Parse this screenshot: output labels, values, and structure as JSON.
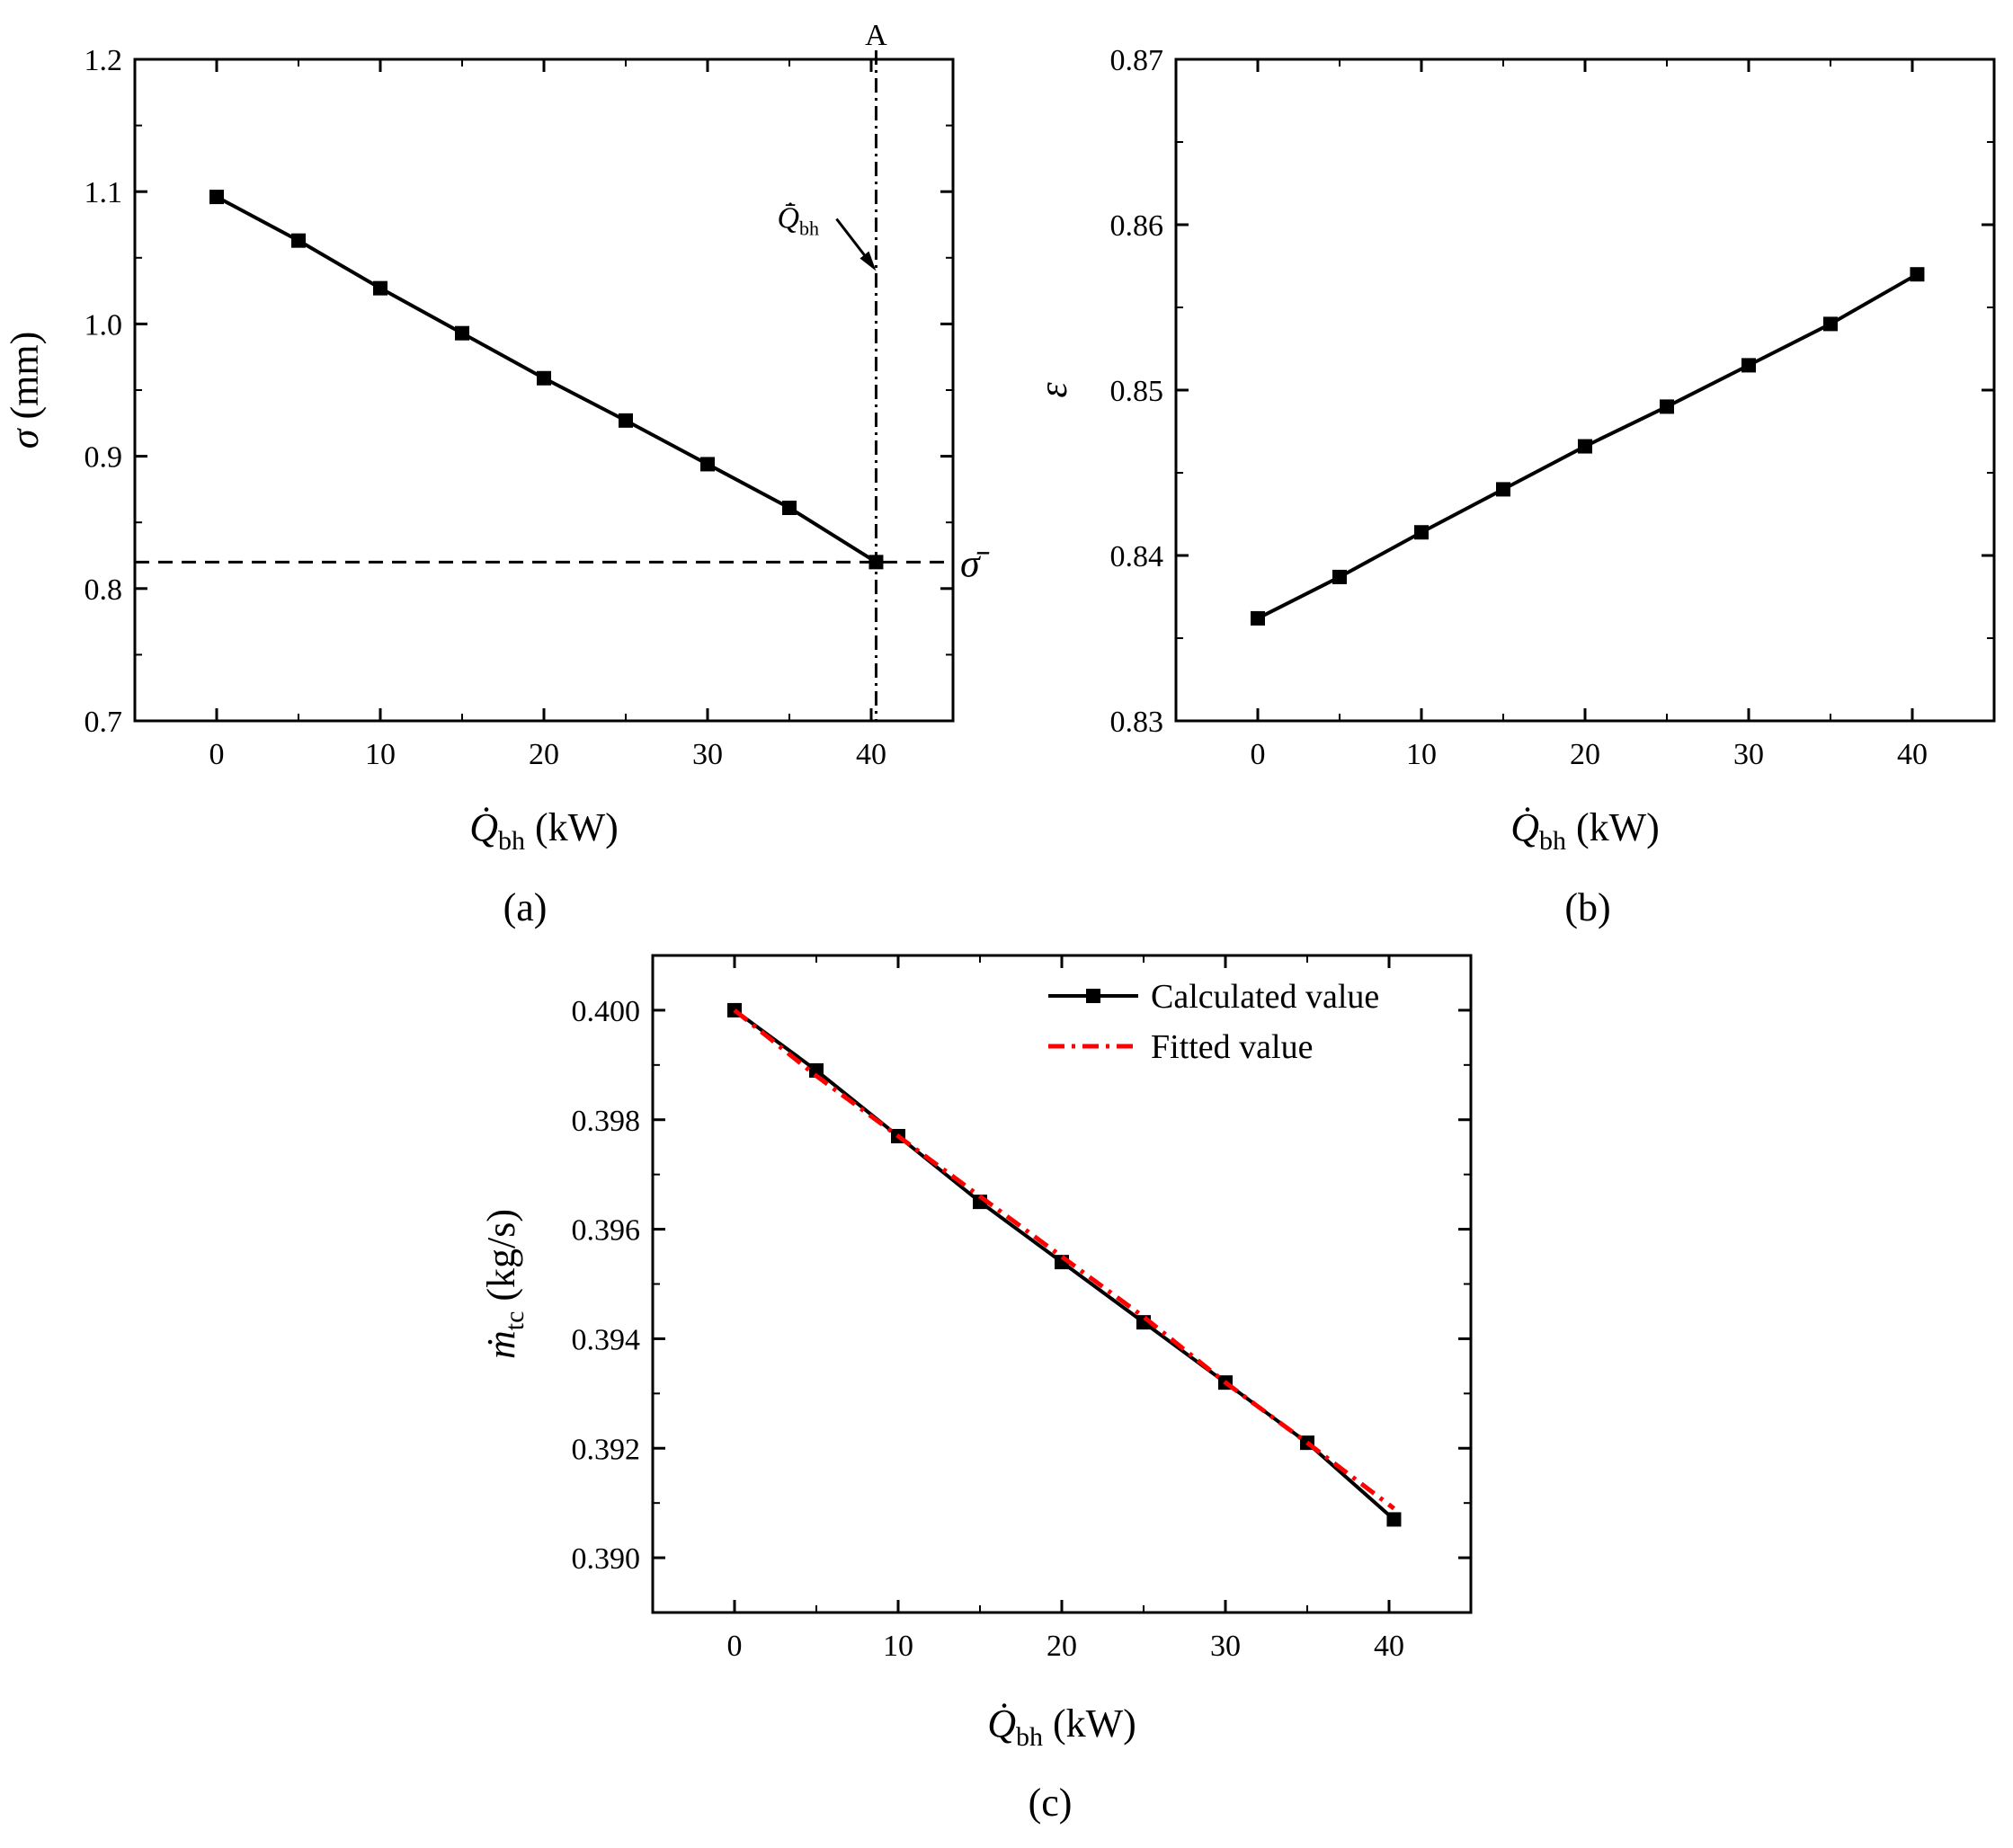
{
  "colors": {
    "axis": "#000000",
    "calculated": "#000000",
    "fitted": "#ff0000"
  },
  "chart_data": [
    {
      "panel": "(a)",
      "type": "line",
      "xlabel": {
        "symbol": "Q̇",
        "sub": "bh",
        "unit": " (kW)"
      },
      "ylabel": {
        "symbol": "σ",
        "unit": " (mm)"
      },
      "xlim": [
        -5,
        45
      ],
      "ylim": [
        0.7,
        1.2
      ],
      "xticks": [
        "0",
        "10",
        "20",
        "30",
        "40"
      ],
      "xtick_values": [
        0,
        10,
        20,
        30,
        40
      ],
      "yticks": [
        "0.7",
        "0.8",
        "0.9",
        "1.0",
        "1.1",
        "1.2"
      ],
      "ytick_values": [
        0.7,
        0.8,
        0.9,
        1.0,
        1.1,
        1.2
      ],
      "x": [
        0,
        5,
        10,
        15,
        20,
        25,
        30,
        35,
        40.3
      ],
      "series": [
        {
          "marker": "square",
          "color": "#000000",
          "values": [
            1.096,
            1.063,
            1.027,
            0.993,
            0.959,
            0.927,
            0.894,
            0.861,
            0.82
          ]
        }
      ],
      "reference_lines": [
        {
          "orientation": "horizontal",
          "value": 0.82,
          "style": "dashed",
          "label": "σ̄"
        },
        {
          "orientation": "vertical",
          "value": 40.3,
          "style": "dashdot",
          "label": "A"
        }
      ],
      "annotations": [
        {
          "symbol": "Q̇̄",
          "sub": "bh",
          "arrow_to": [
            40.3,
            1.04
          ]
        }
      ]
    },
    {
      "panel": "(b)",
      "type": "line",
      "xlabel": {
        "symbol": "Q̇",
        "sub": "bh",
        "unit": " (kW)"
      },
      "ylabel": {
        "symbol": "ε",
        "unit": ""
      },
      "xlim": [
        -5,
        45
      ],
      "ylim": [
        0.83,
        0.87
      ],
      "xticks": [
        "0",
        "10",
        "20",
        "30",
        "40"
      ],
      "xtick_values": [
        0,
        10,
        20,
        30,
        40
      ],
      "yticks": [
        "0.83",
        "0.84",
        "0.85",
        "0.86",
        "0.87"
      ],
      "ytick_values": [
        0.83,
        0.84,
        0.85,
        0.86,
        0.87
      ],
      "x": [
        0,
        5,
        10,
        15,
        20,
        25,
        30,
        35,
        40.3
      ],
      "series": [
        {
          "marker": "square",
          "color": "#000000",
          "values": [
            0.8362,
            0.8387,
            0.8414,
            0.844,
            0.8466,
            0.849,
            0.8515,
            0.854,
            0.857
          ]
        }
      ]
    },
    {
      "panel": "(c)",
      "type": "line",
      "xlabel": {
        "symbol": "Q̇",
        "sub": "bh",
        "unit": " (kW)"
      },
      "ylabel": {
        "symbol": "ṁ",
        "sub": "tc",
        "unit": " (kg/s)"
      },
      "xlim": [
        -5,
        45
      ],
      "ylim": [
        0.389,
        0.401
      ],
      "xticks": [
        "0",
        "10",
        "20",
        "30",
        "40"
      ],
      "xtick_values": [
        0,
        10,
        20,
        30,
        40
      ],
      "yticks": [
        "0.390",
        "0.392",
        "0.394",
        "0.396",
        "0.398",
        "0.400"
      ],
      "ytick_values": [
        0.39,
        0.392,
        0.394,
        0.396,
        0.398,
        0.4
      ],
      "x": [
        0,
        5,
        10,
        15,
        20,
        25,
        30,
        35,
        40.3
      ],
      "legend_position": "top-right",
      "series": [
        {
          "name": "Calculated value",
          "marker": "square",
          "style": "solid",
          "color": "#000000",
          "values": [
            0.4,
            0.3989,
            0.3977,
            0.3965,
            0.3954,
            0.3943,
            0.3932,
            0.3921,
            0.3907
          ]
        },
        {
          "name": "Fitted value",
          "marker": "none",
          "style": "dashdot",
          "color": "#ff0000",
          "values": [
            0.4,
            0.3988,
            0.3977,
            0.3966,
            0.3955,
            0.3944,
            0.3932,
            0.3921,
            0.3909
          ]
        }
      ]
    }
  ]
}
